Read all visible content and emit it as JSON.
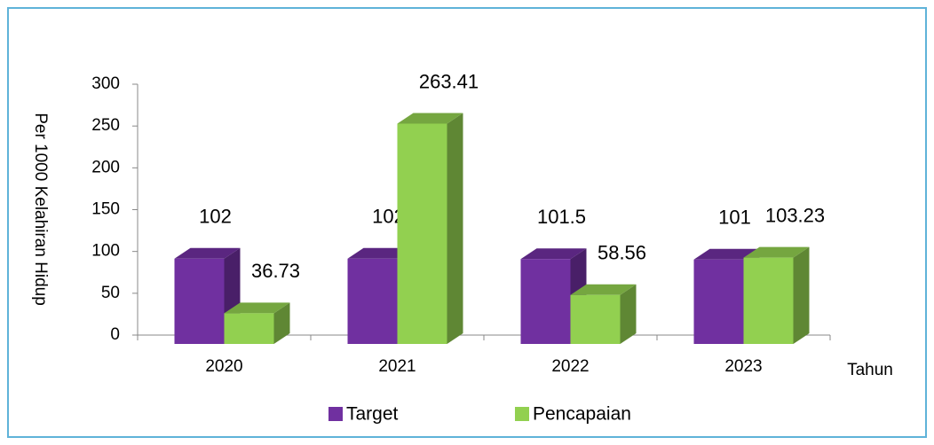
{
  "chart_data": {
    "type": "bar",
    "y_axis_label": "Per 1000 Kelahiran Hidup",
    "x_axis_label": "Tahun",
    "categories": [
      "2020",
      "2021",
      "2022",
      "2023"
    ],
    "series": [
      {
        "name": "Target",
        "color": "#7030a0",
        "values": [
          102,
          102,
          101.5,
          101
        ]
      },
      {
        "name": "Pencapaian",
        "color": "#92d050",
        "values": [
          36.73,
          263.41,
          58.56,
          103.23
        ]
      }
    ],
    "ylim": [
      0,
      300
    ],
    "yticks": [
      0,
      50,
      100,
      150,
      200,
      250,
      300
    ],
    "legend": "bottom"
  }
}
